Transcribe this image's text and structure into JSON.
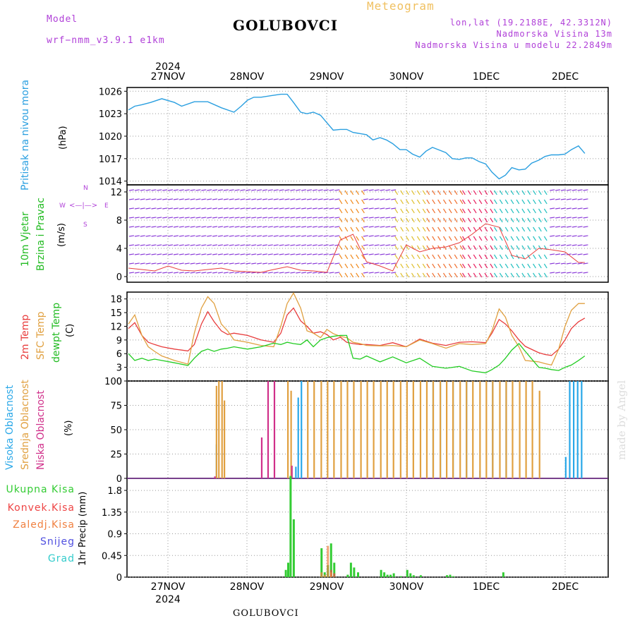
{
  "header": {
    "model_label": "Model",
    "model_name": "wrf−nmm_v3.9.1  e1km",
    "title": "GOLUBOVCI",
    "meteogram": "Meteogram",
    "lonlat": "lon,lat (19.2188E, 42.3312N)",
    "altitude": "Nadmorska Visina 13m",
    "model_altitude": "Nadmorska Visina u modelu 22.2849m",
    "footer": "GOLUBOVCI",
    "watermark": "made by Angel"
  },
  "axis": {
    "top_year": "2024",
    "bottom_year": "2024",
    "dates": [
      "27NOV",
      "28NOV",
      "29NOV",
      "30NOV",
      "1DEC",
      "2DEC"
    ]
  },
  "labels": {
    "pressure": "Pritisak na nivou mora",
    "pressure_unit": "(hPa)",
    "wind_a": "10m Vjetar",
    "wind_b": "Brzina i Pravac",
    "wind_unit": "(m/s)",
    "compass_w": "W",
    "compass_e": "E",
    "compass_n": "N",
    "compass_s": "S",
    "temp_a": "2m Temp",
    "temp_b": "SFC Temp",
    "temp_c": "dewpt Temp",
    "temp_unit": "(C)",
    "cloud_a": "Visoka Oblacnost",
    "cloud_b": "Srednja Oblacnost",
    "cloud_c": "Niska Oblacnost",
    "cloud_unit": "(%)",
    "precip_axis": "1hr Precip (mm)",
    "precip_total": "Ukupna Kisa",
    "precip_conv": "Konvek.Kisa",
    "precip_frz": "Zaledj.Kisa",
    "precip_snow": "Snijeg",
    "precip_grad": "Grad"
  },
  "colors": {
    "pressure": "#2a9fe0",
    "temp2m": "#e83c3c",
    "sfc": "#e0a040",
    "dewpt": "#22cc22",
    "cloud_high": "#2aa8e8",
    "cloud_mid": "#e0a040",
    "cloud_low": "#d0308a",
    "precip_total": "#33cc33",
    "precip_conv": "#ee4444",
    "precip_frz": "#f08040",
    "precip_snow": "#5050e0",
    "precip_grad": "#33cccc",
    "purple": "#b040d8",
    "green": "#22bb22"
  },
  "chart_data": [
    {
      "type": "line",
      "panel": "pressure",
      "ylim": [
        1013.5,
        1026.5
      ],
      "yticks": [
        1014,
        1017,
        1020,
        1023,
        1026
      ],
      "x_days": [
        0,
        0.08,
        0.17,
        0.28,
        0.42,
        0.58,
        0.67,
        0.83,
        1.0,
        1.17,
        1.33,
        1.42,
        1.5,
        1.58,
        1.67,
        1.79,
        1.92,
        2.0,
        2.08,
        2.17,
        2.25,
        2.33,
        2.42,
        2.5,
        2.58,
        2.67,
        2.75,
        2.83,
        3.0,
        3.08,
        3.17,
        3.25,
        3.33,
        3.42,
        3.5,
        3.58,
        3.67,
        3.75,
        3.83,
        4.0,
        4.08,
        4.17,
        4.25,
        4.33,
        4.42,
        4.5,
        4.58,
        4.67,
        4.75,
        4.83,
        4.92,
        5.0,
        5.08,
        5.17,
        5.25,
        5.33,
        5.42,
        5.5,
        5.58,
        5.67,
        5.75
      ],
      "values": [
        1023.5,
        1024.0,
        1024.2,
        1024.5,
        1025.0,
        1024.5,
        1024.0,
        1024.6,
        1024.6,
        1023.8,
        1023.2,
        1024.0,
        1024.8,
        1025.2,
        1025.2,
        1025.4,
        1025.6,
        1025.6,
        1024.5,
        1023.2,
        1023.0,
        1023.2,
        1022.8,
        1021.8,
        1020.8,
        1020.9,
        1020.9,
        1020.5,
        1020.2,
        1019.5,
        1019.8,
        1019.5,
        1019.0,
        1018.2,
        1018.2,
        1017.6,
        1017.2,
        1018.0,
        1018.5,
        1017.8,
        1017.0,
        1016.9,
        1017.1,
        1017.1,
        1016.6,
        1016.3,
        1015.2,
        1014.3,
        1014.8,
        1015.8,
        1015.5,
        1015.6,
        1016.4,
        1016.8,
        1017.3,
        1017.5,
        1017.5,
        1017.6,
        1018.2,
        1018.7,
        1017.7
      ]
    },
    {
      "type": "line",
      "panel": "wind",
      "ylim": [
        -0.8,
        13
      ],
      "yticks": [
        0,
        4,
        8,
        12
      ],
      "x_days": [
        0,
        0.17,
        0.33,
        0.5,
        0.67,
        0.83,
        1.0,
        1.17,
        1.33,
        1.5,
        1.67,
        1.83,
        2.0,
        2.17,
        2.33,
        2.5,
        2.67,
        2.83,
        3.0,
        3.17,
        3.33,
        3.5,
        3.67,
        3.83,
        4.0,
        4.17,
        4.33,
        4.5,
        4.67,
        4.83,
        5.0,
        5.17,
        5.33,
        5.5,
        5.67,
        5.75
      ],
      "values": [
        1.2,
        1.0,
        0.8,
        1.5,
        0.9,
        0.8,
        1.0,
        1.2,
        0.8,
        0.7,
        0.6,
        1.0,
        1.4,
        0.9,
        0.8,
        0.6,
        5.2,
        6.0,
        2.1,
        1.5,
        0.8,
        4.5,
        3.5,
        4.0,
        4.2,
        4.8,
        6.0,
        7.5,
        7.0,
        3.0,
        2.5,
        4.0,
        3.8,
        3.5,
        2.0,
        2.0
      ]
    },
    {
      "type": "line",
      "panel": "temperature",
      "ylim": [
        0,
        19.5
      ],
      "yticks": [
        0,
        3,
        6,
        9,
        12,
        15,
        18
      ],
      "x_days": [
        0,
        0.08,
        0.17,
        0.25,
        0.33,
        0.42,
        0.58,
        0.75,
        0.83,
        0.92,
        1.0,
        1.08,
        1.17,
        1.25,
        1.33,
        1.5,
        1.67,
        1.83,
        1.92,
        2.0,
        2.08,
        2.17,
        2.25,
        2.33,
        2.42,
        2.5,
        2.58,
        2.67,
        2.75,
        2.83,
        2.92,
        3.0,
        3.17,
        3.33,
        3.5,
        3.67,
        3.83,
        4.0,
        4.17,
        4.33,
        4.5,
        4.58,
        4.67,
        4.75,
        4.83,
        4.92,
        5.0,
        5.17,
        5.25,
        5.33,
        5.42,
        5.5,
        5.58,
        5.67,
        5.75
      ],
      "series": [
        {
          "key": "temp2m",
          "values": [
            11.5,
            12.8,
            10.0,
            8.5,
            8.0,
            7.5,
            7.0,
            6.6,
            8.0,
            12.5,
            15.2,
            13.0,
            11.0,
            10.2,
            10.5,
            10.0,
            9.0,
            8.5,
            10.5,
            14.5,
            16.0,
            13.2,
            12.0,
            10.5,
            10.8,
            10.2,
            9.0,
            9.6,
            8.5,
            8.2,
            8.0,
            8.0,
            7.8,
            8.4,
            7.5,
            9.2,
            8.3,
            7.8,
            8.5,
            8.6,
            8.4,
            10.5,
            13.5,
            12.5,
            11.0,
            9.0,
            7.6,
            6.2,
            5.8,
            5.6,
            7.0,
            9.0,
            11.5,
            13.0,
            13.8
          ]
        },
        {
          "key": "sfc",
          "values": [
            12.5,
            14.5,
            10.0,
            7.5,
            6.5,
            5.5,
            4.5,
            3.7,
            10.5,
            16.0,
            18.5,
            17.0,
            12.5,
            11.0,
            9.0,
            8.5,
            7.8,
            7.5,
            12.0,
            17.0,
            19.3,
            16.0,
            11.0,
            10.5,
            9.5,
            11.3,
            10.4,
            9.8,
            9.5,
            8.5,
            8.2,
            7.8,
            7.7,
            7.8,
            7.5,
            9.0,
            8.2,
            7.2,
            8.2,
            8.0,
            8.2,
            11.0,
            15.8,
            14.0,
            10.0,
            7.5,
            4.5,
            4.2,
            3.8,
            3.5,
            7.0,
            12.0,
            15.5,
            17.0,
            17.0
          ]
        },
        {
          "key": "dewpt",
          "values": [
            6.0,
            4.5,
            5.0,
            4.5,
            4.8,
            4.5,
            4.0,
            3.4,
            5.0,
            6.5,
            7.0,
            6.5,
            7.0,
            7.2,
            7.5,
            7.0,
            7.5,
            8.3,
            8.0,
            8.5,
            8.2,
            8.0,
            9.0,
            7.5,
            9.0,
            9.5,
            9.8,
            10.0,
            10.0,
            5.0,
            4.8,
            5.5,
            4.2,
            5.3,
            4.0,
            5.0,
            3.2,
            2.8,
            3.2,
            2.2,
            1.8,
            2.5,
            3.5,
            5.0,
            6.8,
            8.2,
            6.5,
            3.0,
            2.8,
            2.5,
            2.3,
            3.0,
            3.5,
            4.5,
            5.5
          ]
        }
      ]
    },
    {
      "type": "bar",
      "panel": "clouds",
      "ylim": [
        0,
        100
      ],
      "yticks": [
        0,
        25,
        50,
        75,
        100
      ],
      "series": [
        {
          "key": "cloud_high",
          "x_days": [
            1.1,
            2.1,
            2.13,
            2.17,
            3.83,
            3.92,
            4.08,
            4.25,
            4.42,
            4.58,
            4.75,
            5.5,
            5.55,
            5.6,
            5.65,
            5.7
          ],
          "values": [
            35,
            12,
            83,
            100,
            100,
            100,
            100,
            100,
            8,
            100,
            100,
            22,
            100,
            100,
            100,
            100
          ]
        },
        {
          "key": "cloud_mid",
          "x_days": [
            1.1,
            1.13,
            1.17,
            1.2,
            2.0,
            2.04,
            2.25,
            2.33,
            2.42,
            2.5,
            2.58,
            2.67,
            2.75,
            2.83,
            2.92,
            3.0,
            3.08,
            3.17,
            3.25,
            3.33,
            3.42,
            3.5,
            3.58,
            3.67,
            3.75,
            3.83,
            3.92,
            4.0,
            4.08,
            4.17,
            4.25,
            4.33,
            4.42,
            4.5,
            4.58,
            4.67,
            4.75,
            4.83,
            4.92,
            5.0,
            5.08,
            5.17
          ],
          "values": [
            95,
            100,
            100,
            80,
            100,
            90,
            100,
            100,
            100,
            100,
            100,
            100,
            100,
            100,
            100,
            100,
            100,
            100,
            100,
            100,
            100,
            100,
            100,
            100,
            100,
            100,
            100,
            100,
            100,
            100,
            100,
            100,
            100,
            100,
            100,
            100,
            100,
            100,
            100,
            100,
            100,
            90
          ]
        },
        {
          "key": "cloud_low",
          "x_days": [
            1.08,
            1.67,
            1.75,
            1.83,
            2.05
          ],
          "values": [
            2,
            42,
            100,
            100,
            13
          ]
        }
      ]
    },
    {
      "type": "bar",
      "panel": "precipitation",
      "ylim": [
        0,
        2.05
      ],
      "yticks": [
        0,
        0.45,
        0.9,
        1.35,
        1.8
      ],
      "series": [
        {
          "key": "precip_total",
          "x_days": [
            1.97,
            2.0,
            2.03,
            2.07,
            2.42,
            2.46,
            2.5,
            2.54,
            2.58,
            2.75,
            2.79,
            2.83,
            2.88,
            3.17,
            3.21,
            3.25,
            3.29,
            3.33,
            3.42,
            3.5,
            3.54,
            3.58,
            3.67,
            4.0,
            4.04,
            4.08,
            4.71
          ],
          "values": [
            0.15,
            0.3,
            2.1,
            1.2,
            0.6,
            0.1,
            0.25,
            0.7,
            0.3,
            0.05,
            0.3,
            0.2,
            0.1,
            0.15,
            0.1,
            0.05,
            0.05,
            0.08,
            0.02,
            0.15,
            0.08,
            0.04,
            0.04,
            0.04,
            0.05,
            0.02,
            0.1
          ]
        },
        {
          "key": "precip_conv",
          "x_days": [
            2.54,
            2.58
          ],
          "values": [
            0.15,
            0.08
          ]
        },
        {
          "key": "precip_frz",
          "x_days": [
            2.42,
            2.46,
            2.5,
            2.54
          ],
          "values": [
            0.1,
            0.05,
            0.65,
            0.1
          ]
        }
      ]
    }
  ]
}
